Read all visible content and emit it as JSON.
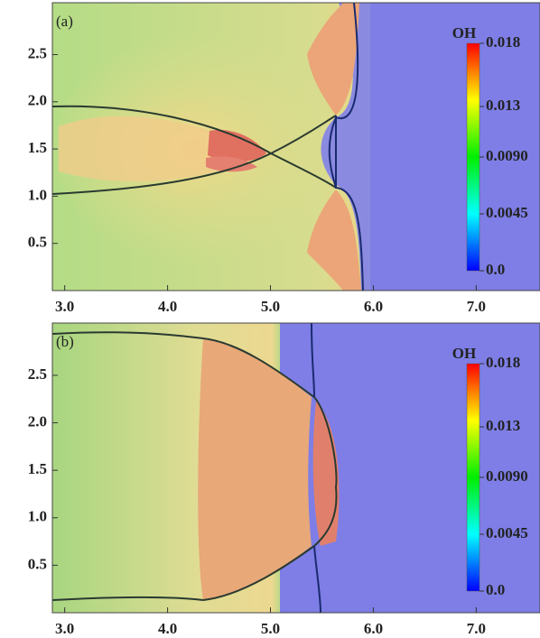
{
  "chart_data": [
    {
      "type": "heatmap",
      "panel_label": "(a)",
      "xlim": [
        2.88,
        7.62
      ],
      "xticks": [
        {
          "value": 3,
          "label": "3.0"
        },
        {
          "value": 4,
          "label": "4.0"
        },
        {
          "value": 5,
          "label": "5.0"
        },
        {
          "value": 6,
          "label": "6.0"
        },
        {
          "value": 7,
          "label": "7.0"
        }
      ],
      "ylim": [
        0,
        3.05
      ],
      "yticks": [
        0.5,
        {
          "value": 1,
          "label": "1.0"
        },
        1.5,
        {
          "value": 2,
          "label": "2.0"
        },
        2.5
      ],
      "colorbar": {
        "title": "OH",
        "lim": [
          0,
          0.018
        ],
        "colors": [
          "#0000ff",
          "#00ffff",
          "#00ee00",
          "#ffff00",
          "#ff0000"
        ],
        "ticks": [
          {
            "value": 0,
            "label": "0.0"
          },
          0.0045,
          {
            "value": 0.009,
            "label": "0.0090"
          },
          0.013,
          0.018
        ]
      }
    },
    {
      "type": "heatmap",
      "panel_label": "(b)",
      "xlim": [
        2.88,
        7.62
      ],
      "xticks": [
        {
          "value": 3,
          "label": "3.0"
        },
        {
          "value": 4,
          "label": "4.0"
        },
        {
          "value": 5,
          "label": "5.0"
        },
        {
          "value": 6,
          "label": "6.0"
        },
        {
          "value": 7,
          "label": "7.0"
        }
      ],
      "ylim": [
        0,
        3.05
      ],
      "yticks": [
        0.5,
        {
          "value": 1,
          "label": "1.0"
        },
        1.5,
        {
          "value": 2,
          "label": "2.0"
        },
        2.5
      ],
      "colorbar": {
        "title": "OH",
        "lim": [
          0,
          0.018
        ],
        "colors": [
          "#0000ff",
          "#00ffff",
          "#00ee00",
          "#ffff00",
          "#ff0000"
        ],
        "ticks": [
          {
            "value": 0,
            "label": "0.0"
          },
          0.0045,
          {
            "value": 0.009,
            "label": "0.0090"
          },
          0.013,
          0.018
        ]
      }
    }
  ]
}
